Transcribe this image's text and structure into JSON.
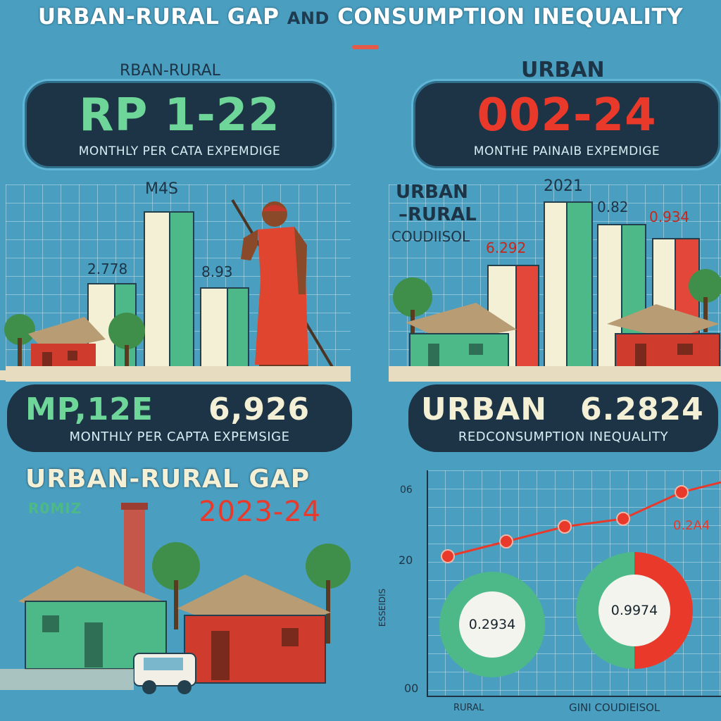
{
  "header": {
    "title_part1": "URBAN-RURAL GAP",
    "title_and": "AND",
    "title_part2": "CONSUMPTION INEQUALITY"
  },
  "rural_card": {
    "label": "RBAN-RURAL",
    "value": "RP 1-22",
    "caption": "MONTHLY PER CATA EXPEMDIGE"
  },
  "urban_card": {
    "label": "URBAN",
    "value": "002-24",
    "caption": "MONTHE PAINAIB EXPEMDIGE"
  },
  "left_chart": {
    "top_label": "M4S",
    "bar_labels": [
      "2.778",
      "8.93"
    ]
  },
  "right_chart": {
    "side_label_line1": "URBAN",
    "side_label_line2": "–RURAL",
    "side_label_line3": "COUDIISOL",
    "year_label": "2021",
    "bar_labels": [
      "6.292",
      "0.82",
      "0.934"
    ]
  },
  "rural_banner": {
    "left_text": "MP,12E",
    "right_value": "6,926",
    "caption": "MONTHLY PER CAPTA EXPEMSIGE"
  },
  "urban_banner": {
    "left_text": "URBAN",
    "right_value": "6.2824",
    "caption": "REDCONSUMPTION INEQUALITY"
  },
  "gap_section": {
    "heading": "URBAN-RURAL GAP",
    "sub_left": "R0MIZ",
    "year": "2023-24"
  },
  "gini_chart": {
    "y_top": "06",
    "y_mid": "20",
    "y_bottom": "00",
    "side_label": "ESSEIDIS",
    "right_value": "0.2A4",
    "x_left": "RURAL",
    "x_right": "GINI COUDIEISOL",
    "donut_left": "0.2934",
    "donut_right": "0.9974",
    "line_values": [
      0.2,
      0.35,
      0.5,
      0.58,
      0.85
    ]
  },
  "colors": {
    "green": "#6fd69a",
    "red": "#e8392b",
    "cream": "#f3f0d6",
    "navy": "#1d3446"
  }
}
